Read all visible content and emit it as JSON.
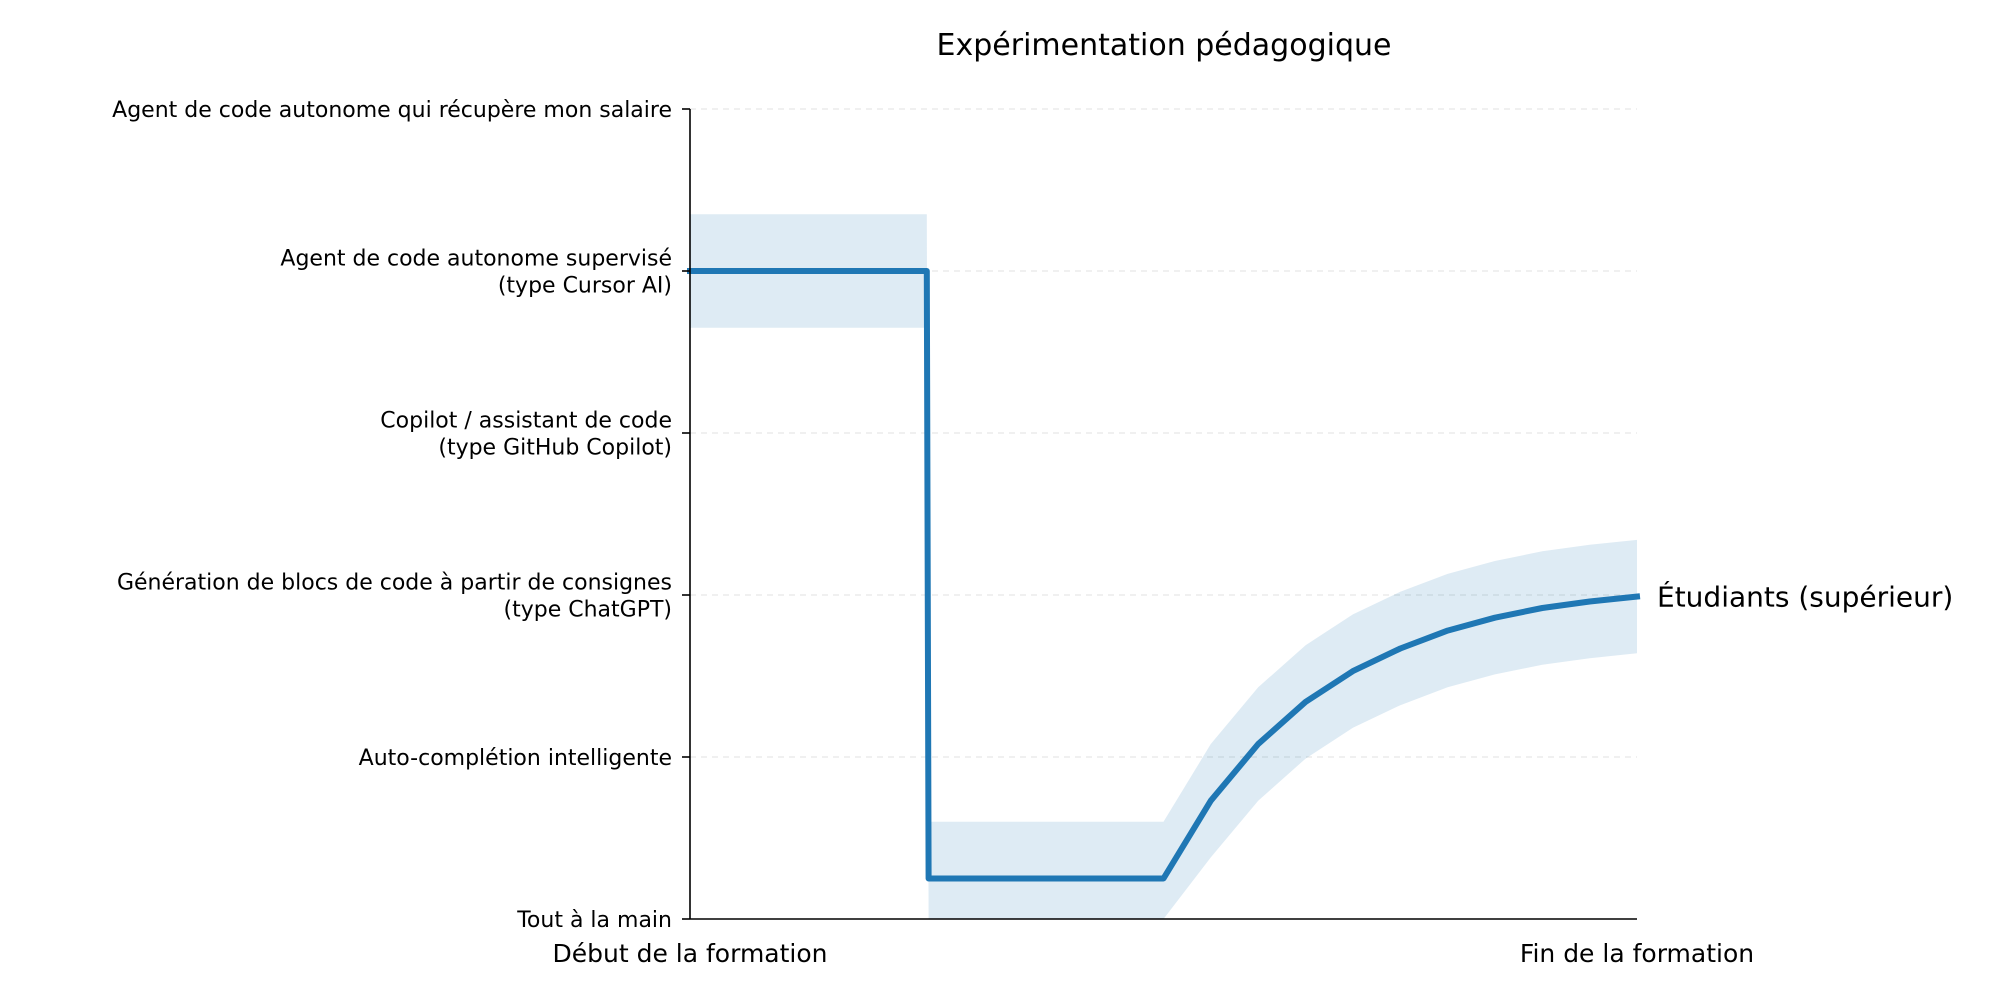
{
  "chart_data": {
    "type": "line",
    "title": "Expérimentation pédagogique",
    "xlabel": "",
    "ylabel": "",
    "xlim": [
      0,
      1
    ],
    "ylim": [
      0,
      5
    ],
    "x_ticks": [
      {
        "value": 0,
        "label": "Début de la formation"
      },
      {
        "value": 1,
        "label": "Fin de la formation"
      }
    ],
    "y_ticks": [
      {
        "value": 0,
        "lines": [
          "Tout à la main"
        ]
      },
      {
        "value": 1,
        "lines": [
          "Auto-complétion intelligente"
        ]
      },
      {
        "value": 2,
        "lines": [
          "Génération de blocs de code à partir de consignes",
          "(type ChatGPT)"
        ]
      },
      {
        "value": 3,
        "lines": [
          "Copilot / assistant de code",
          "(type GitHub Copilot)"
        ]
      },
      {
        "value": 4,
        "lines": [
          "Agent de code autonome supervisé",
          "(type Cursor AI)"
        ]
      },
      {
        "value": 5,
        "lines": [
          "Agent de code autonome qui récupère mon salaire"
        ]
      }
    ],
    "grid": "horizontal dashed",
    "series": [
      {
        "name": "Étudiants (supérieur)",
        "color": "#1f77b4",
        "band_color": "#1f77b4",
        "band_opacity": 0.15,
        "points": [
          {
            "x": 0.0,
            "y": 4.0,
            "lo": 3.65,
            "hi": 4.35
          },
          {
            "x": 0.25,
            "y": 4.0,
            "lo": 3.65,
            "hi": 4.35
          },
          {
            "x": 0.252,
            "y": 0.25,
            "lo": -0.1,
            "hi": 0.6
          },
          {
            "x": 0.5,
            "y": 0.25,
            "lo": -0.1,
            "hi": 0.6
          },
          {
            "x": 0.55,
            "y": 0.73,
            "lo": 0.38,
            "hi": 1.08
          },
          {
            "x": 0.6,
            "y": 1.08,
            "lo": 0.73,
            "hi": 1.43
          },
          {
            "x": 0.65,
            "y": 1.34,
            "lo": 0.99,
            "hi": 1.69
          },
          {
            "x": 0.7,
            "y": 1.53,
            "lo": 1.18,
            "hi": 1.88
          },
          {
            "x": 0.75,
            "y": 1.67,
            "lo": 1.32,
            "hi": 2.02
          },
          {
            "x": 0.8,
            "y": 1.78,
            "lo": 1.43,
            "hi": 2.13
          },
          {
            "x": 0.85,
            "y": 1.86,
            "lo": 1.51,
            "hi": 2.21
          },
          {
            "x": 0.9,
            "y": 1.92,
            "lo": 1.57,
            "hi": 2.27
          },
          {
            "x": 0.95,
            "y": 1.96,
            "lo": 1.61,
            "hi": 2.31
          },
          {
            "x": 1.0,
            "y": 1.99,
            "lo": 1.64,
            "hi": 2.34
          }
        ]
      }
    ]
  }
}
